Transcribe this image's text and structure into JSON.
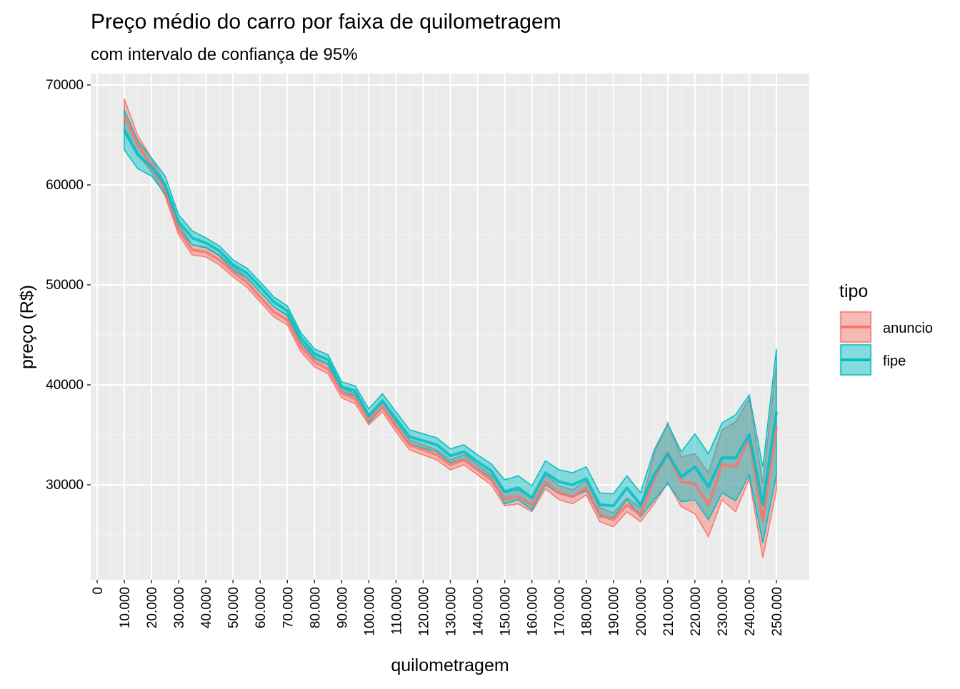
{
  "chart_data": {
    "type": "ribbon-line",
    "title": "Preço médio do carro por faixa de quilometragem",
    "subtitle": "com intervalo de confiança de 95%",
    "x_label": "quilometragem",
    "y_label": "preço (R$)",
    "legend_title": "tipo",
    "grid": true,
    "x": [
      10000,
      15000,
      20000,
      25000,
      30000,
      35000,
      40000,
      45000,
      50000,
      55000,
      60000,
      65000,
      70000,
      75000,
      80000,
      85000,
      90000,
      95000,
      100000,
      105000,
      110000,
      115000,
      120000,
      125000,
      130000,
      135000,
      140000,
      145000,
      150000,
      155000,
      160000,
      165000,
      170000,
      175000,
      180000,
      185000,
      190000,
      195000,
      200000,
      205000,
      210000,
      215000,
      220000,
      225000,
      230000,
      235000,
      240000,
      245000,
      250000
    ],
    "series": [
      {
        "name": "anuncio",
        "color": "#F8766D",
        "values": [
          66900,
          64000,
          62000,
          59500,
          55500,
          53500,
          53300,
          52500,
          51300,
          50300,
          48800,
          47300,
          46500,
          43800,
          42300,
          41600,
          39200,
          38600,
          36500,
          37800,
          35800,
          34000,
          33500,
          33000,
          32000,
          32500,
          31500,
          30500,
          28600,
          28800,
          28000,
          30300,
          29200,
          28800,
          29700,
          27000,
          26500,
          28000,
          27000,
          30600,
          33200,
          30300,
          30100,
          28000,
          32000,
          31800,
          34600,
          26400,
          35800
        ],
        "lower": [
          65200,
          63100,
          61300,
          58900,
          55000,
          53000,
          52800,
          52000,
          50800,
          49800,
          48300,
          46800,
          46000,
          43300,
          41800,
          41100,
          38700,
          38100,
          36000,
          37300,
          35300,
          33500,
          33000,
          32500,
          31500,
          32000,
          31000,
          30000,
          27900,
          28100,
          27300,
          29600,
          28500,
          28100,
          29000,
          26300,
          25800,
          27300,
          26300,
          28100,
          30200,
          27800,
          27100,
          24800,
          28500,
          27300,
          30600,
          22700,
          29500
        ],
        "upper": [
          68600,
          64900,
          62700,
          60100,
          56000,
          54000,
          53800,
          53000,
          51800,
          50800,
          49300,
          47800,
          47000,
          44300,
          42800,
          42100,
          39700,
          39100,
          37000,
          38300,
          36300,
          34500,
          34000,
          33500,
          32500,
          33000,
          32000,
          31000,
          29300,
          29500,
          28700,
          31000,
          29900,
          29500,
          30400,
          27700,
          27200,
          28700,
          27700,
          33100,
          36200,
          32800,
          33100,
          31200,
          35500,
          36300,
          38600,
          30100,
          42100
        ]
      },
      {
        "name": "fipe",
        "color": "#00BFC4",
        "values": [
          65500,
          63000,
          61800,
          60000,
          56300,
          54700,
          54200,
          53400,
          52000,
          51200,
          49800,
          48300,
          47400,
          44700,
          43100,
          42500,
          39800,
          39400,
          36900,
          38400,
          36600,
          34800,
          34400,
          34000,
          32900,
          33300,
          32300,
          31400,
          29300,
          29700,
          28700,
          31200,
          30300,
          30000,
          30600,
          28000,
          27900,
          29700,
          28000,
          31000,
          33100,
          30800,
          31800,
          29800,
          32700,
          32700,
          35000,
          28000,
          37300
        ],
        "lower": [
          63500,
          61600,
          60900,
          59100,
          55600,
          54000,
          53700,
          52900,
          51500,
          50700,
          49300,
          47800,
          46900,
          44200,
          42600,
          42000,
          39300,
          38900,
          36200,
          37700,
          35900,
          34100,
          33700,
          33300,
          32200,
          32600,
          31600,
          30700,
          28100,
          28500,
          27500,
          30000,
          29100,
          28800,
          29400,
          26800,
          26700,
          28500,
          26800,
          28500,
          30100,
          28300,
          28500,
          26500,
          29200,
          28400,
          31000,
          24200,
          31000
        ],
        "upper": [
          67500,
          64400,
          62700,
          60900,
          57000,
          55400,
          54700,
          53900,
          52500,
          51700,
          50300,
          48800,
          47900,
          45200,
          43600,
          43000,
          40300,
          39900,
          37600,
          39100,
          37300,
          35500,
          35100,
          34700,
          33600,
          34000,
          33000,
          32100,
          30500,
          30900,
          29900,
          32400,
          31500,
          31200,
          31800,
          29200,
          29100,
          30900,
          29200,
          33500,
          36100,
          33300,
          35100,
          33100,
          36200,
          37000,
          39000,
          31800,
          43600
        ]
      }
    ],
    "xlim": [
      -2366,
      262100
    ],
    "ylim": [
      20500,
      71143
    ],
    "xticks": [
      0,
      {
        "value": 10000,
        "label": "10.000"
      },
      {
        "value": 20000,
        "label": "20.000"
      },
      {
        "value": 30000,
        "label": "30.000"
      },
      {
        "value": 40000,
        "label": "40.000"
      },
      {
        "value": 50000,
        "label": "50.000"
      },
      {
        "value": 60000,
        "label": "60.000"
      },
      {
        "value": 70000,
        "label": "70.000"
      },
      {
        "value": 80000,
        "label": "80.000"
      },
      {
        "value": 90000,
        "label": "90.000"
      },
      {
        "value": 100000,
        "label": "100.000"
      },
      {
        "value": 110000,
        "label": "110.000"
      },
      {
        "value": 120000,
        "label": "120.000"
      },
      {
        "value": 130000,
        "label": "130.000"
      },
      {
        "value": 140000,
        "label": "140.000"
      },
      {
        "value": 150000,
        "label": "150.000"
      },
      {
        "value": 160000,
        "label": "160.000"
      },
      {
        "value": 170000,
        "label": "170.000"
      },
      {
        "value": 180000,
        "label": "180.000"
      },
      {
        "value": 190000,
        "label": "190.000"
      },
      {
        "value": 200000,
        "label": "200.000"
      },
      {
        "value": 210000,
        "label": "210.000"
      },
      {
        "value": 220000,
        "label": "220.000"
      },
      {
        "value": 230000,
        "label": "230.000"
      },
      {
        "value": 240000,
        "label": "240.000"
      },
      {
        "value": 250000,
        "label": "250.000"
      }
    ],
    "yticks": [
      30000,
      40000,
      50000,
      60000,
      70000
    ]
  }
}
